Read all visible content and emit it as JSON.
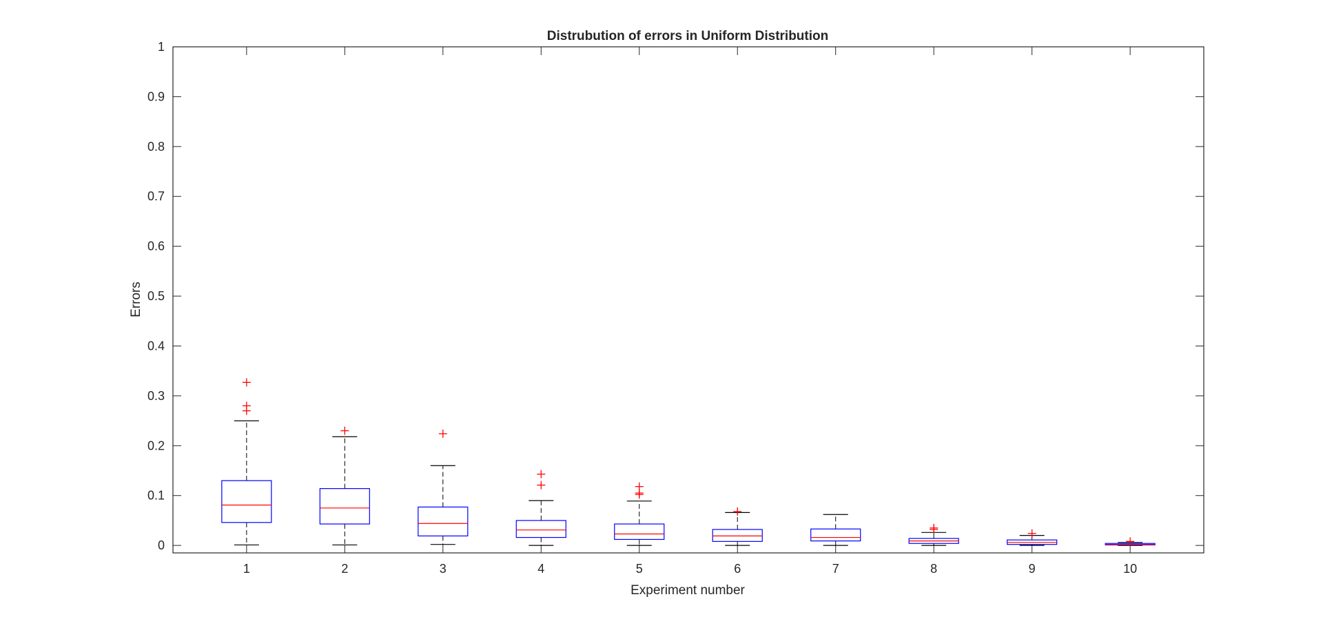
{
  "chart_data": {
    "type": "box",
    "title": "Distrubution of errors in Uniform Distribution",
    "xlabel": "Experiment number",
    "ylabel": "Errors",
    "ylim": [
      -0.015,
      1.0
    ],
    "yticks": [
      0,
      0.1,
      0.2,
      0.3,
      0.4,
      0.5,
      0.6,
      0.7,
      0.8,
      0.9,
      1
    ],
    "ytick_labels": [
      "0",
      "0.1",
      "0.2",
      "0.3",
      "0.4",
      "0.5",
      "0.6",
      "0.7",
      "0.8",
      "0.9",
      "1"
    ],
    "categories": [
      "1",
      "2",
      "3",
      "4",
      "5",
      "6",
      "7",
      "8",
      "9",
      "10"
    ],
    "grid": false,
    "legend": "none",
    "colors": {
      "box": "#0000ff",
      "median": "#ff0000",
      "whisker": "#000000",
      "outlier": "#ff0000",
      "axes": "#262626"
    },
    "boxes": [
      {
        "label": "1",
        "whisker_low": 0.001,
        "q1": 0.046,
        "median": 0.081,
        "q3": 0.13,
        "whisker_high": 0.25,
        "outliers": [
          0.27,
          0.28,
          0.327
        ]
      },
      {
        "label": "2",
        "whisker_low": 0.001,
        "q1": 0.043,
        "median": 0.075,
        "q3": 0.114,
        "whisker_high": 0.218,
        "outliers": [
          0.23
        ]
      },
      {
        "label": "3",
        "whisker_low": 0.002,
        "q1": 0.019,
        "median": 0.044,
        "q3": 0.077,
        "whisker_high": 0.16,
        "outliers": [
          0.224
        ]
      },
      {
        "label": "4",
        "whisker_low": 0.0,
        "q1": 0.016,
        "median": 0.031,
        "q3": 0.05,
        "whisker_high": 0.09,
        "outliers": [
          0.121,
          0.143
        ]
      },
      {
        "label": "5",
        "whisker_low": 0.0,
        "q1": 0.012,
        "median": 0.023,
        "q3": 0.043,
        "whisker_high": 0.089,
        "outliers": [
          0.102,
          0.105,
          0.118
        ]
      },
      {
        "label": "6",
        "whisker_low": 0.0,
        "q1": 0.008,
        "median": 0.019,
        "q3": 0.032,
        "whisker_high": 0.066,
        "outliers": [
          0.068
        ]
      },
      {
        "label": "7",
        "whisker_low": 0.0,
        "q1": 0.009,
        "median": 0.016,
        "q3": 0.033,
        "whisker_high": 0.062,
        "outliers": []
      },
      {
        "label": "8",
        "whisker_low": 0.0,
        "q1": 0.004,
        "median": 0.009,
        "q3": 0.014,
        "whisker_high": 0.026,
        "outliers": [
          0.032,
          0.035
        ]
      },
      {
        "label": "9",
        "whisker_low": 0.0,
        "q1": 0.002,
        "median": 0.006,
        "q3": 0.011,
        "whisker_high": 0.02,
        "outliers": [
          0.024
        ]
      },
      {
        "label": "10",
        "whisker_low": 0.0,
        "q1": 0.001,
        "median": 0.002,
        "q3": 0.004,
        "whisker_high": 0.006,
        "outliers": [
          0.008
        ]
      }
    ]
  }
}
